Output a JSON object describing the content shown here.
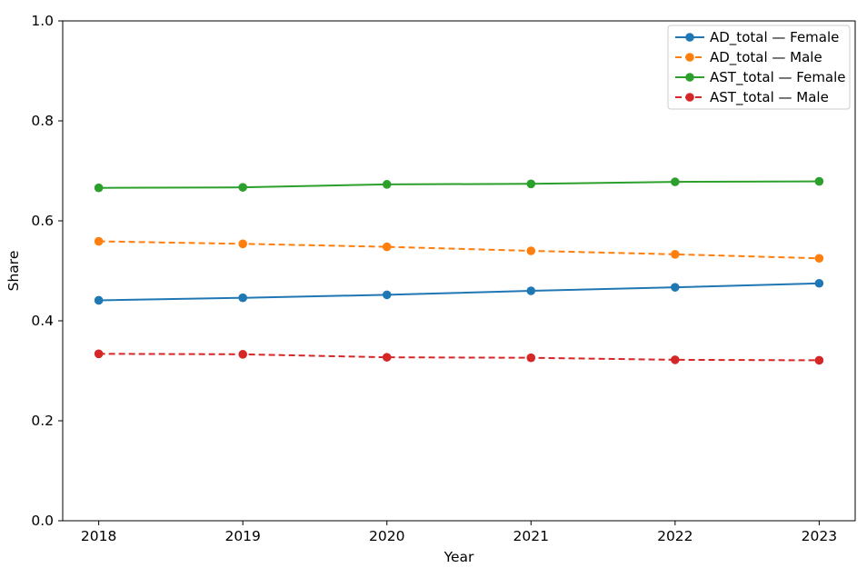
{
  "window": {
    "background": "#ffffff"
  },
  "chart_data": {
    "type": "line",
    "title": "",
    "xlabel": "Year",
    "ylabel": "Share",
    "x": [
      2018,
      2019,
      2020,
      2021,
      2022,
      2023
    ],
    "xtick_labels": [
      "2018",
      "2019",
      "2020",
      "2021",
      "2022",
      "2023"
    ],
    "yticks": [
      0.0,
      0.2,
      0.4,
      0.6,
      0.8,
      1.0
    ],
    "ytick_labels": [
      "0.0",
      "0.2",
      "0.4",
      "0.6",
      "0.8",
      "1.0"
    ],
    "xlim": [
      2017.75,
      2023.25
    ],
    "ylim": [
      0.0,
      1.0
    ],
    "grid": false,
    "legend_position": "upper right",
    "legend_border_color": "#cccccc",
    "axis_color": "#000000",
    "series": [
      {
        "name": "AD_total — Female",
        "values": [
          0.441,
          0.446,
          0.452,
          0.46,
          0.467,
          0.475
        ],
        "color": "#1f77b4",
        "linestyle": "solid",
        "marker": "circle"
      },
      {
        "name": "AD_total — Male",
        "values": [
          0.559,
          0.554,
          0.548,
          0.54,
          0.533,
          0.525
        ],
        "color": "#ff7f0e",
        "linestyle": "dashed",
        "marker": "circle"
      },
      {
        "name": "AST_total — Female",
        "values": [
          0.666,
          0.667,
          0.673,
          0.674,
          0.678,
          0.679
        ],
        "color": "#2ca02c",
        "linestyle": "solid",
        "marker": "circle"
      },
      {
        "name": "AST_total — Male",
        "values": [
          0.334,
          0.333,
          0.327,
          0.326,
          0.322,
          0.321
        ],
        "color": "#d62728",
        "linestyle": "dashed",
        "marker": "circle"
      }
    ]
  }
}
